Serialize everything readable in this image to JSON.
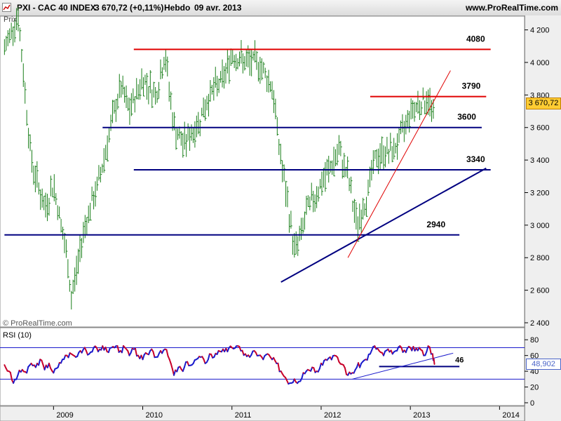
{
  "header": {
    "title": "PXI - CAC 40 INDEX",
    "price": "3 670,72 (+0,11%)",
    "period": "Hebdo",
    "date": "09 avr. 2013",
    "site": "www.ProRealTime.com"
  },
  "main_panel": {
    "label": "Prix",
    "copyright": "© ProRealTime.com"
  },
  "rsi_panel": {
    "label": "RSI (10)"
  },
  "price_box": "3 670,72",
  "rsi_box": "48,902",
  "colors": {
    "price_box_bg": "#ffcc33",
    "rsi_blue": "#1a1acc",
    "rsi_red": "#c8002a",
    "level_red": "#e00000",
    "level_blue": "#000080",
    "bars_green": "#1a7f1a"
  },
  "chart_data": [
    {
      "type": "ohlc",
      "title": "PXI - CAC 40 INDEX",
      "period": "weekly",
      "x_labels": [
        "2009",
        "2010",
        "2011",
        "2012",
        "2013",
        "2014"
      ],
      "y_ticks": [
        2400,
        2600,
        2800,
        3000,
        3200,
        3400,
        3600,
        3800,
        4000,
        4200
      ],
      "ylim": [
        2400,
        4250
      ],
      "close_path": [
        {
          "x": "2008.45",
          "y": 4080
        },
        {
          "x": "2008.6",
          "y": 4300
        },
        {
          "x": "2008.75",
          "y": 3400
        },
        {
          "x": "2008.9",
          "y": 3100
        },
        {
          "x": "2009.0",
          "y": 3250
        },
        {
          "x": "2009.15",
          "y": 2800
        },
        {
          "x": "2009.2",
          "y": 2550
        },
        {
          "x": "2009.35",
          "y": 3000
        },
        {
          "x": "2009.5",
          "y": 3250
        },
        {
          "x": "2009.6",
          "y": 3500
        },
        {
          "x": "2009.75",
          "y": 3850
        },
        {
          "x": "2009.85",
          "y": 3700
        },
        {
          "x": "2010.0",
          "y": 3900
        },
        {
          "x": "2010.15",
          "y": 3800
        },
        {
          "x": "2010.25",
          "y": 4050
        },
        {
          "x": "2010.35",
          "y": 3600
        },
        {
          "x": "2010.45",
          "y": 3500
        },
        {
          "x": "2010.6",
          "y": 3600
        },
        {
          "x": "2010.75",
          "y": 3800
        },
        {
          "x": "2010.9",
          "y": 3900
        },
        {
          "x": "2011.0",
          "y": 4050
        },
        {
          "x": "2011.15",
          "y": 4000
        },
        {
          "x": "2011.3",
          "y": 4000
        },
        {
          "x": "2011.45",
          "y": 3850
        },
        {
          "x": "2011.55",
          "y": 3400
        },
        {
          "x": "2011.7",
          "y": 2850
        },
        {
          "x": "2011.75",
          "y": 2900
        },
        {
          "x": "2011.85",
          "y": 3100
        },
        {
          "x": "2011.95",
          "y": 3200
        },
        {
          "x": "2012.05",
          "y": 3300
        },
        {
          "x": "2012.2",
          "y": 3450
        },
        {
          "x": "2012.3",
          "y": 3300
        },
        {
          "x": "2012.4",
          "y": 3000
        },
        {
          "x": "2012.5",
          "y": 3150
        },
        {
          "x": "2012.6",
          "y": 3400
        },
        {
          "x": "2012.7",
          "y": 3450
        },
        {
          "x": "2012.8",
          "y": 3450
        },
        {
          "x": "2012.9",
          "y": 3550
        },
        {
          "x": "2013.0",
          "y": 3700
        },
        {
          "x": "2013.1",
          "y": 3750
        },
        {
          "x": "2013.2",
          "y": 3770
        },
        {
          "x": "2013.27",
          "y": 3670
        }
      ],
      "horizontal_levels": [
        {
          "label": "4080",
          "value": 4080,
          "color": "red",
          "x_from": "2009.9",
          "x_to": "2013.9"
        },
        {
          "label": "3790",
          "value": 3790,
          "color": "red",
          "x_from": "2012.55",
          "x_to": "2013.85"
        },
        {
          "label": "3600",
          "value": 3600,
          "color": "blue",
          "x_from": "2009.55",
          "x_to": "2013.8"
        },
        {
          "label": "3340",
          "value": 3340,
          "color": "blue",
          "x_from": "2009.9",
          "x_to": "2013.9"
        },
        {
          "label": "2940",
          "value": 2940,
          "color": "blue",
          "x_from": "2008.45",
          "x_to": "2013.55"
        }
      ],
      "trendlines": [
        {
          "color": "blue",
          "from": {
            "x": "2011.55",
            "y": 2650
          },
          "to": {
            "x": "2013.85",
            "y": 3350
          }
        },
        {
          "color": "red",
          "from": {
            "x": "2012.3",
            "y": 2800
          },
          "to": {
            "x": "2013.45",
            "y": 3950
          }
        }
      ],
      "last_price": 3670.72
    },
    {
      "type": "line",
      "title": "RSI (10)",
      "y_ticks": [
        0,
        20,
        40,
        60,
        80
      ],
      "ylim": [
        0,
        90
      ],
      "levels": [
        {
          "value": 70
        },
        {
          "value": 30
        },
        {
          "label": "46",
          "value": 46
        }
      ],
      "trendline": {
        "from": {
          "x": "2012.35",
          "y": 30
        },
        "to": {
          "x": "2013.48",
          "y": 63
        }
      },
      "series": [
        {
          "values": [
            [
              2008.45,
              48
            ],
            [
              2008.5,
              40
            ],
            [
              2008.55,
              25
            ],
            [
              2008.6,
              35
            ],
            [
              2008.65,
              42
            ],
            [
              2008.7,
              38
            ],
            [
              2008.75,
              50
            ],
            [
              2008.8,
              45
            ],
            [
              2008.85,
              55
            ],
            [
              2008.9,
              42
            ],
            [
              2008.95,
              50
            ],
            [
              2009.0,
              38
            ],
            [
              2009.05,
              45
            ],
            [
              2009.1,
              55
            ],
            [
              2009.15,
              60
            ],
            [
              2009.2,
              62
            ],
            [
              2009.25,
              58
            ],
            [
              2009.3,
              66
            ],
            [
              2009.35,
              70
            ],
            [
              2009.4,
              62
            ],
            [
              2009.45,
              70
            ],
            [
              2009.5,
              65
            ],
            [
              2009.55,
              72
            ],
            [
              2009.6,
              65
            ],
            [
              2009.65,
              70
            ],
            [
              2009.7,
              72
            ],
            [
              2009.75,
              66
            ],
            [
              2009.8,
              70
            ],
            [
              2009.85,
              60
            ],
            [
              2009.9,
              68
            ],
            [
              2009.95,
              60
            ],
            [
              2010.0,
              55
            ],
            [
              2010.05,
              62
            ],
            [
              2010.1,
              68
            ],
            [
              2010.15,
              58
            ],
            [
              2010.2,
              66
            ],
            [
              2010.25,
              68
            ],
            [
              2010.3,
              55
            ],
            [
              2010.35,
              35
            ],
            [
              2010.4,
              45
            ],
            [
              2010.45,
              40
            ],
            [
              2010.5,
              52
            ],
            [
              2010.55,
              48
            ],
            [
              2010.6,
              55
            ],
            [
              2010.65,
              58
            ],
            [
              2010.7,
              50
            ],
            [
              2010.75,
              62
            ],
            [
              2010.8,
              58
            ],
            [
              2010.85,
              66
            ],
            [
              2010.9,
              68
            ],
            [
              2010.95,
              65
            ],
            [
              2011.0,
              70
            ],
            [
              2011.05,
              72
            ],
            [
              2011.1,
              66
            ],
            [
              2011.15,
              62
            ],
            [
              2011.2,
              58
            ],
            [
              2011.25,
              66
            ],
            [
              2011.3,
              60
            ],
            [
              2011.35,
              55
            ],
            [
              2011.4,
              62
            ],
            [
              2011.45,
              55
            ],
            [
              2011.5,
              50
            ],
            [
              2011.55,
              40
            ],
            [
              2011.6,
              32
            ],
            [
              2011.65,
              25
            ],
            [
              2011.7,
              30
            ],
            [
              2011.75,
              27
            ],
            [
              2011.8,
              38
            ],
            [
              2011.85,
              42
            ],
            [
              2011.9,
              45
            ],
            [
              2011.95,
              40
            ],
            [
              2012.0,
              50
            ],
            [
              2012.05,
              55
            ],
            [
              2012.1,
              58
            ],
            [
              2012.15,
              60
            ],
            [
              2012.2,
              52
            ],
            [
              2012.25,
              48
            ],
            [
              2012.3,
              35
            ],
            [
              2012.35,
              38
            ],
            [
              2012.4,
              45
            ],
            [
              2012.45,
              50
            ],
            [
              2012.5,
              55
            ],
            [
              2012.55,
              62
            ],
            [
              2012.6,
              72
            ],
            [
              2012.65,
              66
            ],
            [
              2012.7,
              60
            ],
            [
              2012.75,
              68
            ],
            [
              2012.8,
              62
            ],
            [
              2012.85,
              66
            ],
            [
              2012.9,
              70
            ],
            [
              2012.95,
              64
            ],
            [
              2013.0,
              70
            ],
            [
              2013.05,
              66
            ],
            [
              2013.1,
              70
            ],
            [
              2013.15,
              60
            ],
            [
              2013.2,
              72
            ],
            [
              2013.25,
              62
            ],
            [
              2013.27,
              49
            ]
          ]
        }
      ]
    }
  ]
}
